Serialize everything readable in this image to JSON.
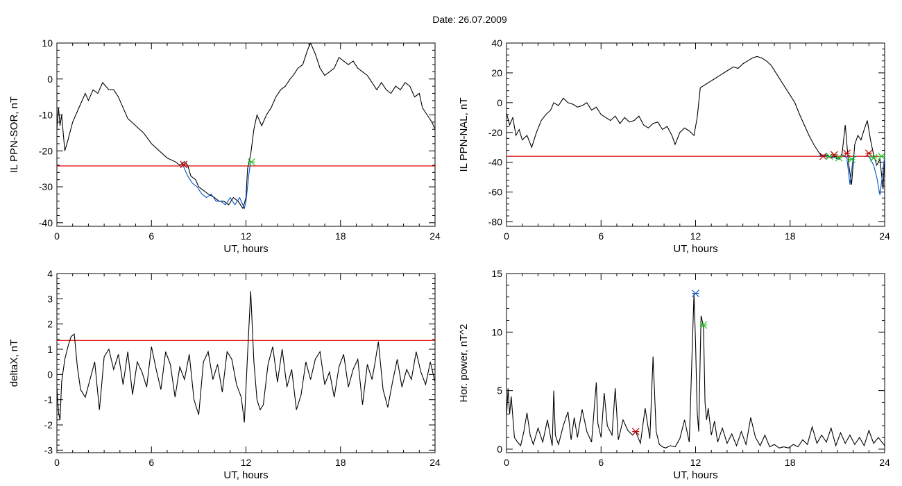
{
  "figure_title": "Date:  26.07.2009",
  "colors": {
    "threshold": "#e00000",
    "highlight": "#0050c8",
    "start_marker": "#c00000",
    "end_marker": "#20c020",
    "peak_marker": "#2060c0",
    "trace": "#000000"
  },
  "chart_data": [
    {
      "type": "line",
      "title": "",
      "xlabel": "UT, hours",
      "ylabel": "IL PPN-SOR, nT",
      "xlim": [
        0,
        24
      ],
      "ylim": [
        -41,
        10
      ],
      "xticks": [
        0,
        6,
        12,
        18,
        24
      ],
      "yticks": [
        -40,
        -30,
        -20,
        -10,
        0,
        10
      ],
      "threshold": -24.2,
      "series": [
        {
          "color": "#000000",
          "x": [
            0,
            0.1,
            0.2,
            0.3,
            0.5,
            0.7,
            1.0,
            1.3,
            1.5,
            1.8,
            2.0,
            2.3,
            2.6,
            2.9,
            3.1,
            3.3,
            3.6,
            3.9,
            4.2,
            4.5,
            5.0,
            5.5,
            6.0,
            6.5,
            7.0,
            7.5,
            7.8,
            8.1,
            8.3,
            8.5,
            8.8,
            9.0,
            9.3,
            9.6,
            10.0,
            10.3,
            10.6,
            10.9,
            11.2,
            11.5,
            11.8,
            12.0,
            12.1,
            12.2,
            12.3,
            12.5,
            12.7,
            13.0,
            13.3,
            13.6,
            13.9,
            14.2,
            14.5,
            14.8,
            15.0,
            15.3,
            15.6,
            15.9,
            16.1,
            16.4,
            16.7,
            17.0,
            17.3,
            17.6,
            17.9,
            18.2,
            18.5,
            18.8,
            19.1,
            19.4,
            19.7,
            20.0,
            20.3,
            20.6,
            20.9,
            21.2,
            21.5,
            21.8,
            22.1,
            22.4,
            22.7,
            23.0,
            23.2,
            23.5,
            23.8,
            24.0
          ],
          "values": [
            -14,
            -8,
            -13,
            -10,
            -20,
            -17,
            -12,
            -9,
            -7,
            -4,
            -6,
            -3,
            -4,
            -1,
            -2,
            -3,
            -3,
            -5,
            -8,
            -11,
            -13,
            -15,
            -18,
            -20,
            -22,
            -23,
            -24,
            -23,
            -24,
            -27,
            -28,
            -30,
            -31,
            -32,
            -33,
            -34,
            -34,
            -35,
            -33,
            -34,
            -36,
            -33,
            -25,
            -23,
            -21,
            -14,
            -10,
            -13,
            -10,
            -8,
            -5,
            -3,
            -2,
            0,
            1,
            3,
            4,
            8,
            10,
            7,
            3,
            1,
            2,
            3,
            6,
            5,
            4,
            5,
            3,
            2,
            1,
            -1,
            -3,
            -1,
            -3,
            -4,
            -2,
            -3,
            -1,
            -2,
            -5,
            -4,
            -8,
            -10,
            -12,
            -14
          ]
        },
        {
          "color": "#0050c8",
          "x": [
            8.0,
            8.3,
            8.6,
            8.9,
            9.2,
            9.5,
            9.8,
            10.1,
            10.4,
            10.7,
            11.0,
            11.3,
            11.6,
            11.9,
            12.0,
            12.1,
            12.2,
            12.3
          ],
          "values": [
            -24,
            -27,
            -29,
            -30,
            -32,
            -33,
            -32,
            -34,
            -34,
            -35,
            -33,
            -35,
            -33,
            -36,
            -34,
            -30,
            -26,
            -23
          ]
        }
      ],
      "markers": [
        {
          "x": 8.05,
          "y": -23.8,
          "color": "#c00000"
        },
        {
          "x": 12.35,
          "y": -23.1,
          "color": "#20c020"
        }
      ]
    },
    {
      "type": "line",
      "title": "",
      "xlabel": "UT, hours",
      "ylabel": "IL PPN-NAL, nT",
      "xlim": [
        0,
        24
      ],
      "ylim": [
        -83,
        40
      ],
      "xticks": [
        0,
        6,
        12,
        18,
        24
      ],
      "yticks": [
        -80,
        -60,
        -40,
        -20,
        0,
        20,
        40
      ],
      "threshold": -36,
      "series": [
        {
          "color": "#000000",
          "x": [
            0,
            0.2,
            0.4,
            0.6,
            0.8,
            1.0,
            1.3,
            1.6,
            1.9,
            2.2,
            2.5,
            2.8,
            3.0,
            3.3,
            3.6,
            3.9,
            4.2,
            4.5,
            4.8,
            5.1,
            5.4,
            5.7,
            6.0,
            6.3,
            6.6,
            6.9,
            7.2,
            7.5,
            7.8,
            8.1,
            8.4,
            8.7,
            9.0,
            9.3,
            9.6,
            9.9,
            10.2,
            10.5,
            10.7,
            11.0,
            11.3,
            11.6,
            11.9,
            12.1,
            12.3,
            12.6,
            12.9,
            13.2,
            13.5,
            13.8,
            14.1,
            14.4,
            14.7,
            15.0,
            15.3,
            15.6,
            15.9,
            16.2,
            16.5,
            16.8,
            17.1,
            17.4,
            17.7,
            18.0,
            18.3,
            18.6,
            18.9,
            19.2,
            19.5,
            19.8,
            20.0,
            20.3,
            20.6,
            20.9,
            21.1,
            21.3,
            21.5,
            21.7,
            21.9,
            22.1,
            22.3,
            22.5,
            22.7,
            22.9,
            23.1,
            23.3,
            23.5,
            23.7,
            23.9,
            24.0
          ],
          "values": [
            -7,
            -15,
            -10,
            -22,
            -18,
            -25,
            -22,
            -30,
            -20,
            -12,
            -8,
            -5,
            0,
            -2,
            3,
            0,
            -1,
            -3,
            -2,
            0,
            -5,
            -3,
            -8,
            -10,
            -12,
            -9,
            -14,
            -10,
            -13,
            -12,
            -9,
            -15,
            -17,
            -14,
            -13,
            -18,
            -16,
            -22,
            -28,
            -20,
            -17,
            -19,
            -22,
            -10,
            10,
            12,
            14,
            16,
            18,
            20,
            22,
            24,
            23,
            26,
            28,
            30,
            31,
            30,
            28,
            25,
            20,
            15,
            10,
            5,
            0,
            -8,
            -15,
            -22,
            -28,
            -33,
            -36,
            -35,
            -37,
            -36,
            -38,
            -34,
            -15,
            -40,
            -55,
            -28,
            -22,
            -25,
            -18,
            -12,
            -25,
            -35,
            -42,
            -38,
            -58,
            -36
          ]
        },
        {
          "color": "#0050c8",
          "x": [
            19.8,
            20.1,
            20.4,
            20.7,
            21.0,
            21.3,
            21.6,
            21.8,
            22.0,
            22.2
          ],
          "values": [
            -36,
            -35,
            -37,
            -36,
            -38,
            -35,
            -37,
            -55,
            -37,
            -36
          ]
        },
        {
          "color": "#0050c8",
          "x": [
            22.9,
            23.1,
            23.3,
            23.5,
            23.7,
            23.9,
            24.0
          ],
          "values": [
            -35,
            -38,
            -42,
            -50,
            -62,
            -45,
            -36
          ]
        }
      ],
      "markers": [
        {
          "x": 20.1,
          "y": -36,
          "color": "#c00000"
        },
        {
          "x": 20.5,
          "y": -36,
          "color": "#20c020"
        },
        {
          "x": 20.8,
          "y": -35,
          "color": "#c00000"
        },
        {
          "x": 21.1,
          "y": -37,
          "color": "#20c020"
        },
        {
          "x": 21.6,
          "y": -34,
          "color": "#c00000"
        },
        {
          "x": 21.9,
          "y": -38,
          "color": "#20c020"
        },
        {
          "x": 23.0,
          "y": -34,
          "color": "#c00000"
        },
        {
          "x": 23.3,
          "y": -37,
          "color": "#20c020"
        },
        {
          "x": 23.8,
          "y": -36,
          "color": "#20c020"
        }
      ]
    },
    {
      "type": "line",
      "title": "",
      "xlabel": "UT, hours",
      "ylabel": "deltaX, nT",
      "xlim": [
        0,
        24
      ],
      "ylim": [
        -3.1,
        4
      ],
      "xticks": [
        0,
        6,
        12,
        18,
        24
      ],
      "yticks": [
        -3,
        -2,
        -1,
        0,
        1,
        2,
        3,
        4
      ],
      "threshold": 1.35,
      "series": [
        {
          "color": "#000000",
          "x": [
            0,
            0.1,
            0.2,
            0.3,
            0.5,
            0.7,
            0.9,
            1.1,
            1.3,
            1.5,
            1.8,
            2.1,
            2.4,
            2.7,
            3.0,
            3.3,
            3.6,
            3.9,
            4.2,
            4.5,
            4.8,
            5.1,
            5.4,
            5.7,
            6.0,
            6.3,
            6.6,
            6.9,
            7.2,
            7.5,
            7.8,
            8.1,
            8.4,
            8.7,
            9.0,
            9.3,
            9.6,
            9.9,
            10.2,
            10.5,
            10.8,
            11.1,
            11.4,
            11.7,
            11.9,
            12.1,
            12.3,
            12.5,
            12.7,
            12.9,
            13.1,
            13.4,
            13.7,
            14.0,
            14.3,
            14.6,
            14.9,
            15.2,
            15.5,
            15.8,
            16.1,
            16.4,
            16.7,
            17.0,
            17.3,
            17.6,
            17.9,
            18.2,
            18.5,
            18.8,
            19.1,
            19.4,
            19.7,
            20.0,
            20.2,
            20.4,
            20.7,
            21.0,
            21.3,
            21.6,
            21.9,
            22.2,
            22.5,
            22.8,
            23.1,
            23.4,
            23.7,
            24.0
          ],
          "values": [
            -0.5,
            -1.5,
            -1.8,
            -0.3,
            0.6,
            1.1,
            1.5,
            1.6,
            0.3,
            -0.6,
            -0.9,
            -0.2,
            0.5,
            -1.4,
            0.7,
            1.0,
            0.2,
            0.8,
            -0.4,
            0.9,
            -0.8,
            0.5,
            0.1,
            -0.5,
            1.1,
            0.2,
            -0.6,
            0.9,
            0.4,
            -0.9,
            0.3,
            -0.2,
            0.8,
            -1.0,
            -1.6,
            0.5,
            0.9,
            -0.2,
            0.4,
            -0.7,
            0.9,
            0.6,
            -0.4,
            -0.9,
            -1.9,
            0.8,
            3.3,
            0.5,
            -1.0,
            -1.4,
            -1.2,
            0.4,
            1.1,
            -0.3,
            1.0,
            -0.5,
            0.2,
            -1.4,
            -0.8,
            0.5,
            -0.2,
            0.6,
            0.9,
            -0.4,
            0.1,
            -0.9,
            0.3,
            0.8,
            -0.5,
            0.2,
            0.6,
            -1.2,
            0.4,
            -0.2,
            0.5,
            1.3,
            -0.6,
            -1.3,
            -0.3,
            0.6,
            -0.5,
            0.2,
            -0.2,
            0.9,
            0.1,
            -0.4,
            0.5,
            -0.3
          ]
        }
      ],
      "markers": []
    },
    {
      "type": "line",
      "title": "",
      "xlabel": "UT, hours",
      "ylabel": "Hor. power, nT^2",
      "xlim": [
        0,
        24
      ],
      "ylim": [
        -0.3,
        15
      ],
      "xticks": [
        0,
        6,
        12,
        18,
        24
      ],
      "yticks": [
        0,
        5,
        10,
        15
      ],
      "threshold": null,
      "series": [
        {
          "color": "#000000",
          "x": [
            0,
            0.1,
            0.2,
            0.3,
            0.5,
            0.7,
            0.9,
            1.1,
            1.3,
            1.5,
            1.7,
            2.0,
            2.3,
            2.6,
            2.9,
            3.0,
            3.1,
            3.3,
            3.6,
            3.9,
            4.1,
            4.3,
            4.5,
            4.8,
            5.1,
            5.4,
            5.7,
            5.8,
            6.0,
            6.2,
            6.4,
            6.7,
            6.9,
            7.1,
            7.4,
            7.7,
            8.0,
            8.2,
            8.5,
            8.8,
            9.1,
            9.3,
            9.5,
            9.7,
            9.9,
            10.1,
            10.4,
            10.7,
            11.0,
            11.3,
            11.6,
            11.9,
            12.0,
            12.1,
            12.2,
            12.35,
            12.5,
            12.6,
            12.7,
            12.8,
            13.0,
            13.2,
            13.4,
            13.7,
            14.0,
            14.3,
            14.6,
            14.9,
            15.2,
            15.5,
            15.8,
            16.1,
            16.4,
            16.7,
            17.0,
            17.3,
            17.6,
            17.9,
            18.2,
            18.5,
            18.8,
            19.1,
            19.4,
            19.7,
            20.0,
            20.3,
            20.6,
            20.9,
            21.2,
            21.5,
            21.8,
            22.1,
            22.4,
            22.7,
            23.0,
            23.3,
            23.6,
            24.0
          ],
          "values": [
            2.8,
            5.2,
            3.0,
            4.5,
            1.0,
            0.6,
            0.3,
            1.5,
            3.1,
            1.2,
            0.4,
            1.8,
            0.6,
            2.5,
            0.3,
            5.0,
            1.2,
            0.4,
            2.0,
            3.2,
            0.8,
            2.7,
            1.0,
            3.4,
            1.5,
            0.6,
            5.7,
            2.2,
            1.0,
            4.8,
            2.0,
            1.2,
            5.2,
            0.8,
            2.5,
            1.6,
            1.2,
            1.5,
            0.5,
            3.5,
            0.9,
            7.9,
            1.5,
            0.4,
            0.2,
            0.1,
            0.3,
            0.2,
            0.9,
            2.5,
            0.6,
            13.3,
            9.0,
            3.2,
            1.5,
            11.4,
            10.5,
            4.0,
            2.5,
            3.5,
            1.2,
            2.4,
            0.6,
            1.8,
            0.5,
            1.3,
            0.3,
            1.5,
            0.4,
            2.7,
            1.0,
            0.3,
            1.2,
            0.2,
            0.4,
            0.1,
            0.2,
            0.1,
            0.4,
            0.2,
            0.8,
            0.4,
            1.9,
            0.5,
            1.2,
            0.6,
            1.8,
            0.3,
            1.4,
            0.5,
            1.2,
            0.4,
            1.0,
            0.3,
            1.6,
            0.5,
            1.0,
            0.3
          ]
        }
      ],
      "markers": [
        {
          "x": 8.2,
          "y": 1.5,
          "color": "#c00000"
        },
        {
          "x": 12.0,
          "y": 13.3,
          "color": "#2060c0"
        },
        {
          "x": 12.5,
          "y": 10.6,
          "color": "#20c020"
        }
      ]
    }
  ]
}
